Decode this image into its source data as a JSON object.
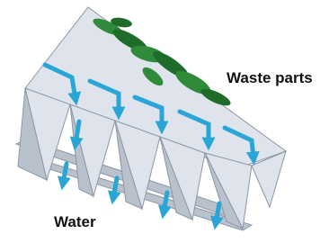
{
  "labels": {
    "waste": "Waste parts",
    "water": "Water"
  }
}
